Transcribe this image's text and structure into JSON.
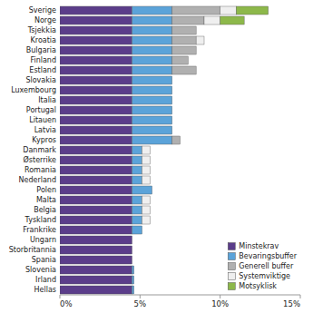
{
  "chart_data": {
    "type": "bar",
    "orientation": "horizontal",
    "stacked": true,
    "categories": [
      "Sverige",
      "Norge",
      "Tsjekkia",
      "Kroatia",
      "Bulgaria",
      "Finland",
      "Estland",
      "Slovakia",
      "Luxembourg",
      "Italia",
      "Portugal",
      "Litauen",
      "Latvia",
      "Kypros",
      "Danmark",
      "Østerrike",
      "Romania",
      "Nederland",
      "Polen",
      "Malta",
      "Belgia",
      "Tyskland",
      "Frankrike",
      "Ungarn",
      "Storbritannia",
      "Spania",
      "Slovenia",
      "Irland",
      "Hellas"
    ],
    "series": [
      {
        "name": "Minstekrav",
        "color": "#5b3d8a",
        "values": [
          4.5,
          4.5,
          4.5,
          4.5,
          4.5,
          4.5,
          4.5,
          4.5,
          4.5,
          4.5,
          4.5,
          4.5,
          4.5,
          4.5,
          4.5,
          4.5,
          4.5,
          4.5,
          4.5,
          4.5,
          4.5,
          4.5,
          4.5,
          4.5,
          4.5,
          4.5,
          4.5,
          4.5,
          4.5
        ]
      },
      {
        "name": "Bevaringsbuffer",
        "color": "#5ba3d9",
        "values": [
          2.5,
          2.5,
          2.5,
          2.5,
          2.5,
          2.5,
          2.5,
          2.5,
          2.5,
          2.5,
          2.5,
          2.5,
          2.5,
          2.5,
          0.625,
          0.625,
          0.625,
          0.625,
          1.25,
          0.625,
          0.625,
          0.625,
          0.625,
          0.0,
          0.0,
          0.0,
          0.125,
          0.125,
          0.125
        ]
      },
      {
        "name": "Generell buffer",
        "color": "#b0b0b0",
        "values": [
          3.0,
          2.0,
          1.5,
          1.5,
          1.5,
          1.0,
          1.5,
          0.0,
          0.0,
          0.0,
          0.0,
          0.0,
          0.0,
          0.5,
          0.0,
          0.0,
          0.0,
          0.0,
          0.0,
          0.0,
          0.0,
          0.0,
          0.0,
          0.0,
          0.0,
          0.0,
          0.0,
          0.0,
          0.0
        ]
      },
      {
        "name": "Systemviktige",
        "color": "#efefef",
        "values": [
          1.0,
          1.0,
          0.0,
          0.5,
          0.0,
          0.0,
          0.0,
          0.0,
          0.0,
          0.0,
          0.0,
          0.0,
          0.0,
          0.0,
          0.5,
          0.5,
          0.5,
          0.5,
          0.0,
          0.5,
          0.5,
          0.5,
          0.0,
          0.0,
          0.0,
          0.0,
          0.0,
          0.0,
          0.0
        ]
      },
      {
        "name": "Motsyklisk",
        "color": "#8db84a",
        "values": [
          2.0,
          1.5,
          0.0,
          0.0,
          0.0,
          0.0,
          0.0,
          0.0,
          0.0,
          0.0,
          0.0,
          0.0,
          0.0,
          0.0,
          0.0,
          0.0,
          0.0,
          0.0,
          0.0,
          0.0,
          0.0,
          0.0,
          0.0,
          0.0,
          0.0,
          0.0,
          0.0,
          0.0,
          0.0
        ]
      }
    ],
    "xlim": [
      0,
      15
    ],
    "xticks": [
      {
        "value": 0,
        "label": "0%"
      },
      {
        "value": 5,
        "label": "5%"
      },
      {
        "value": 10,
        "label": "10%"
      },
      {
        "value": 15,
        "label": "15%"
      }
    ],
    "legend": "lower right"
  }
}
